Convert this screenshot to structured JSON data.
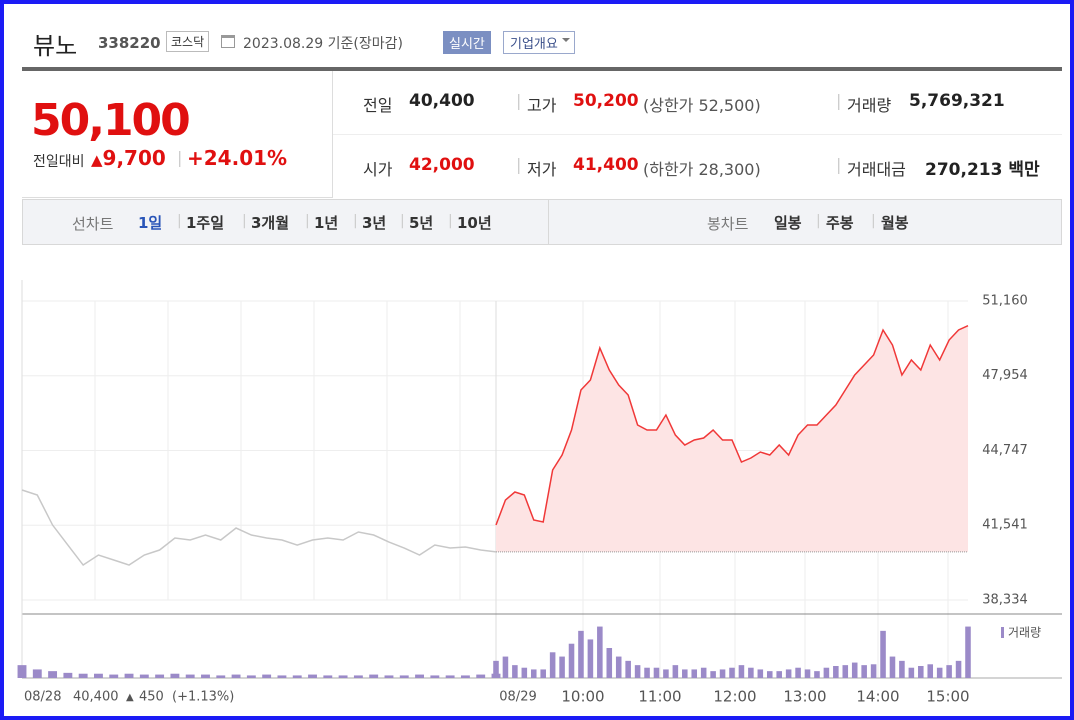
{
  "header": {
    "name": "뷰노",
    "code": "338220",
    "market": "코스닥",
    "date": "2023.08.29 기준(장마감)",
    "realtime": "실시간",
    "company": "기업개요"
  },
  "summary": {
    "price": "50,100",
    "change_label": "전일대비",
    "change": "9,700",
    "rate": "+24.01%",
    "items": [
      {
        "label": "전일",
        "value": "40,400"
      },
      {
        "label": "고가",
        "value": "50,200",
        "note": "(상한가 52,500)"
      },
      {
        "label": "거래량",
        "value": "5,769,321"
      },
      {
        "label": "시가",
        "value": "42,000"
      },
      {
        "label": "저가",
        "value": "41,400",
        "note": "(하한가 28,300)"
      },
      {
        "label": "거래대금",
        "value": "270,213 백만"
      }
    ]
  },
  "tabs": {
    "line_label": "선차트",
    "line": [
      "1일",
      "1주일",
      "3개월",
      "1년",
      "3년",
      "5년",
      "10년"
    ],
    "candle_label": "봉차트",
    "candle": [
      "일봉",
      "주봉",
      "월봉"
    ]
  },
  "chart": {
    "type": "line",
    "ylim": [
      38334,
      51160
    ],
    "yticks": [
      {
        "value": 51160,
        "label": "51,160"
      },
      {
        "value": 47954,
        "label": "47,954"
      },
      {
        "value": 44747,
        "label": "44,747"
      },
      {
        "value": 41541,
        "label": "41,541"
      },
      {
        "value": 38334,
        "label": "38,334"
      }
    ],
    "xticks": [
      "08/29",
      "10:00",
      "11:00",
      "12:00",
      "13:00",
      "14:00",
      "15:00"
    ],
    "baseline": 40400,
    "prev_day": {
      "date": "08/28",
      "close": "40,400",
      "change": "450",
      "rate": "(+1.13%)",
      "color": "#c8c8c8",
      "values": [
        43052,
        42837,
        41550,
        40692,
        39834,
        40263,
        40049,
        39834,
        40263,
        40478,
        40993,
        40907,
        41121,
        40907,
        41422,
        41121,
        40993,
        40907,
        40692,
        40907,
        40993,
        40907,
        41250,
        41121,
        40821,
        40564,
        40263,
        40692,
        40564,
        40607,
        40478,
        40400
      ],
      "volumes": [
        15,
        10,
        8,
        6,
        5,
        5,
        4,
        5,
        4,
        4,
        5,
        4,
        4,
        3,
        4,
        3,
        4,
        3,
        3,
        4,
        3,
        3,
        3,
        4,
        3,
        3,
        4,
        3,
        3,
        3,
        4,
        5
      ]
    },
    "today": {
      "color": "#f03838",
      "values": [
        41550,
        42623,
        42966,
        42837,
        41765,
        41679,
        43910,
        44553,
        45626,
        47342,
        47771,
        49144,
        48200,
        47556,
        47127,
        45840,
        45626,
        45626,
        46269,
        45411,
        44982,
        45197,
        45283,
        45626,
        45197,
        45197,
        44253,
        44425,
        44682,
        44553,
        44982,
        44553,
        45411,
        45840,
        45840,
        46269,
        46698,
        47342,
        47985,
        48414,
        48843,
        49916,
        49272,
        47985,
        48629,
        48200,
        49272,
        48629,
        49487,
        49916,
        50100
      ],
      "volumes": [
        20,
        25,
        15,
        12,
        10,
        10,
        30,
        25,
        40,
        55,
        45,
        60,
        35,
        25,
        20,
        15,
        12,
        12,
        10,
        15,
        10,
        10,
        12,
        8,
        10,
        12,
        15,
        12,
        10,
        8,
        8,
        10,
        12,
        10,
        8,
        12,
        14,
        15,
        18,
        15,
        16,
        55,
        25,
        20,
        12,
        14,
        16,
        12,
        15,
        20,
        60
      ]
    },
    "volume_label": "거래량",
    "volume_color": "#9b8ac8",
    "vlim": [
      0,
      70
    ]
  }
}
